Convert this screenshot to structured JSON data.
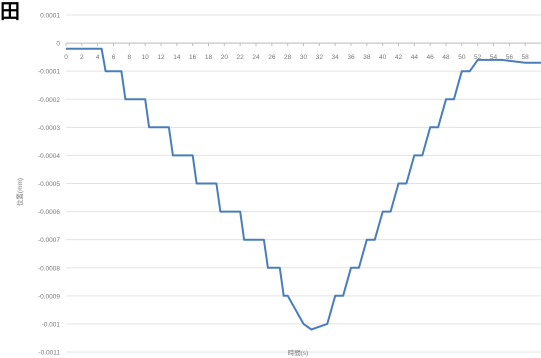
{
  "panel_label": "田",
  "chart_data": {
    "type": "line",
    "title": "",
    "xlabel": "時間(s)",
    "ylabel": "位置(mm)",
    "xlim": [
      0,
      60
    ],
    "ylim": [
      -0.0011,
      0.0001
    ],
    "x_ticks": [
      "0",
      "2",
      "4",
      "6",
      "8",
      "10",
      "12",
      "14",
      "16",
      "18",
      "20",
      "22",
      "24",
      "26",
      "28",
      "30",
      "32",
      "34",
      "36",
      "38",
      "40",
      "42",
      "44",
      "46",
      "48",
      "50",
      "52",
      "54",
      "56",
      "58"
    ],
    "y_ticks": [
      "0.0001",
      "0",
      "-0.0001",
      "-0.0002",
      "-0.0003",
      "-0.0004",
      "-0.0005",
      "-0.0006",
      "-0.0007",
      "-0.0008",
      "-0.0009",
      "-0.001",
      "-0.0011"
    ],
    "grid": "horizontal",
    "legend": "none",
    "series": [
      {
        "color": "#4a7ebb",
        "x": [
          0,
          4.5,
          5,
          6,
          7,
          7.5,
          9,
          10,
          10.5,
          12,
          13,
          13.5,
          15,
          16,
          16.5,
          18,
          19,
          19.5,
          21,
          22,
          22.5,
          24,
          25,
          25.5,
          27,
          27.5,
          28,
          30,
          31,
          32,
          33,
          34,
          35,
          36,
          37,
          38,
          39,
          40,
          41,
          42,
          43,
          44,
          45,
          46,
          47,
          48,
          49,
          50,
          51,
          52,
          53,
          55,
          58,
          60
        ],
        "y": [
          -2e-05,
          -2e-05,
          -0.0001,
          -0.0001,
          -0.0001,
          -0.0002,
          -0.0002,
          -0.0002,
          -0.0003,
          -0.0003,
          -0.0003,
          -0.0004,
          -0.0004,
          -0.0004,
          -0.0005,
          -0.0005,
          -0.0005,
          -0.0006,
          -0.0006,
          -0.0006,
          -0.0007,
          -0.0007,
          -0.0007,
          -0.0008,
          -0.0008,
          -0.0009,
          -0.0009,
          -0.001,
          -0.00102,
          -0.00101,
          -0.001,
          -0.0009,
          -0.0009,
          -0.0008,
          -0.0008,
          -0.0007,
          -0.0007,
          -0.0006,
          -0.0006,
          -0.0005,
          -0.0005,
          -0.0004,
          -0.0004,
          -0.0003,
          -0.0003,
          -0.0002,
          -0.0002,
          -0.0001,
          -0.0001,
          -6e-05,
          -6e-05,
          -6e-05,
          -7e-05,
          -7e-05
        ]
      }
    ]
  }
}
